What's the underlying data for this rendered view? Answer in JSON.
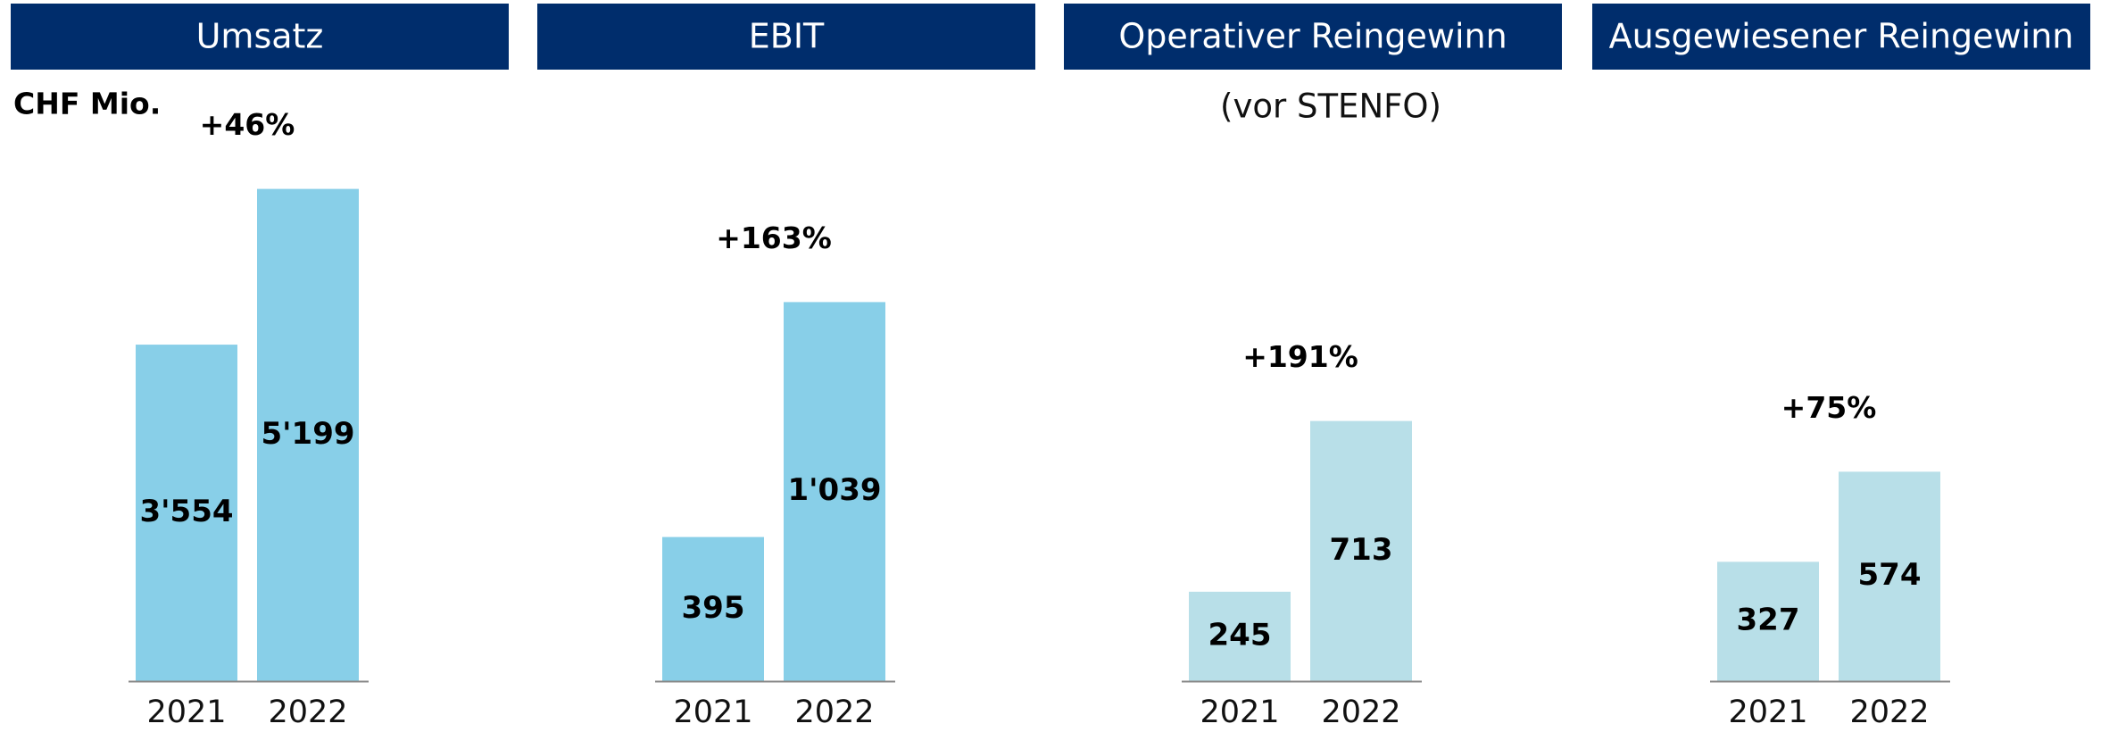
{
  "chart_data": [
    {
      "type": "bar",
      "title": "Umsatz",
      "unit": "CHF Mio.",
      "categories": [
        "2021",
        "2022"
      ],
      "values": [
        3554,
        5199
      ],
      "value_labels": [
        "3'554",
        "5'199"
      ],
      "annotation": "+46%",
      "color": "#88cfe8",
      "ylim": [
        0,
        5780
      ]
    },
    {
      "type": "bar",
      "title": "EBIT",
      "categories": [
        "2021",
        "2022"
      ],
      "values": [
        395,
        1039
      ],
      "value_labels": [
        "395",
        "1'039"
      ],
      "annotation": "+163%",
      "color": "#88cfe8",
      "ylim": [
        0,
        1500
      ]
    },
    {
      "type": "bar",
      "title": "Operativer Reingewinn",
      "subtitle": "(vor STENFO)",
      "categories": [
        "2021",
        "2022"
      ],
      "values": [
        245,
        713
      ],
      "value_labels": [
        "245",
        "713"
      ],
      "annotation": "+191%",
      "color": "#b8dfe8",
      "ylim": [
        0,
        1500
      ]
    },
    {
      "type": "bar",
      "title": "Ausgewiesener Reingewinn",
      "categories": [
        "2021",
        "2022"
      ],
      "values": [
        327,
        574
      ],
      "value_labels": [
        "327",
        "574"
      ],
      "annotation": "+75%",
      "color": "#b8dfe8",
      "ylim": [
        0,
        1500
      ]
    }
  ]
}
